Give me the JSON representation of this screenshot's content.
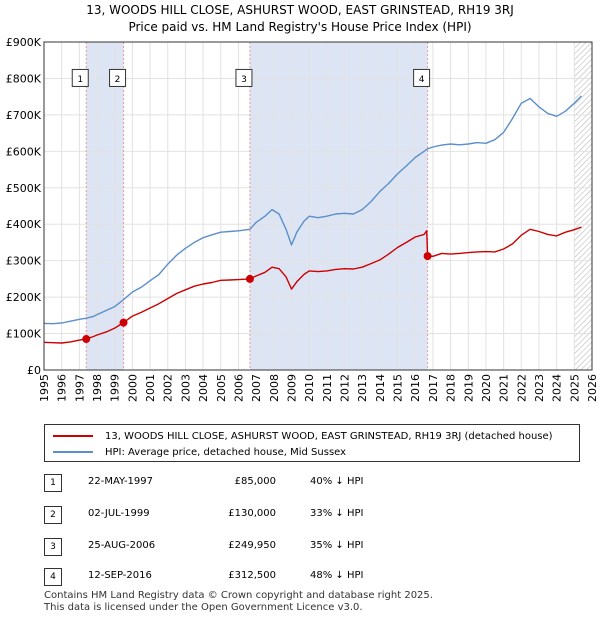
{
  "title_line1": "13, WOODS HILL CLOSE, ASHURST WOOD, EAST GRINSTEAD, RH19 3RJ",
  "title_line2": "Price paid vs. HM Land Registry's House Price Index (HPI)",
  "colors": {
    "property": "#cc0000",
    "hpi": "#5b8fc9",
    "shade": "#dde5f4",
    "marker_dash": "#e39a9a"
  },
  "chart_data": {
    "type": "line",
    "xlim": [
      1995,
      2026
    ],
    "ylim": [
      0,
      900000
    ],
    "x_ticks": [
      "1995",
      "1996",
      "1997",
      "1998",
      "1999",
      "2000",
      "2001",
      "2002",
      "2003",
      "2004",
      "2005",
      "2006",
      "2007",
      "2008",
      "2009",
      "2010",
      "2011",
      "2012",
      "2013",
      "2014",
      "2015",
      "2016",
      "2017",
      "2018",
      "2019",
      "2020",
      "2021",
      "2022",
      "2023",
      "2024",
      "2025",
      "2026"
    ],
    "y_ticks": [
      {
        "value": 0,
        "label": "£0"
      },
      {
        "value": 100000,
        "label": "£100K"
      },
      {
        "value": 200000,
        "label": "£200K"
      },
      {
        "value": 300000,
        "label": "£300K"
      },
      {
        "value": 400000,
        "label": "£400K"
      },
      {
        "value": 500000,
        "label": "£500K"
      },
      {
        "value": 600000,
        "label": "£600K"
      },
      {
        "value": 700000,
        "label": "£700K"
      },
      {
        "value": 800000,
        "label": "£800K"
      },
      {
        "value": 900000,
        "label": "£900K"
      }
    ],
    "shaded_periods": [
      [
        1997.39,
        1999.5
      ],
      [
        2006.65,
        2016.7
      ]
    ],
    "hatched_from": 2025.0,
    "series": [
      {
        "name": "13, WOODS HILL CLOSE, ASHURST WOOD, EAST GRINSTEAD, RH19 3RJ (detached house)",
        "x": [
          1995,
          1995.5,
          1996,
          1996.5,
          1997,
          1997.39,
          1997.8,
          1998,
          1998.5,
          1999,
          1999.5,
          2000,
          2000.5,
          2001,
          2001.5,
          2002,
          2002.5,
          2003,
          2003.5,
          2004,
          2004.5,
          2005,
          2005.5,
          2006,
          2006.65,
          2007,
          2007.5,
          2007.9,
          2008.3,
          2008.7,
          2009,
          2009.3,
          2009.7,
          2010,
          2010.5,
          2011,
          2011.5,
          2012,
          2012.5,
          2013,
          2013.5,
          2014,
          2014.5,
          2015,
          2015.5,
          2016,
          2016.5,
          2016.65,
          2016.7,
          2017,
          2017.5,
          2018,
          2018.5,
          2019,
          2019.5,
          2020,
          2020.5,
          2021,
          2021.5,
          2022,
          2022.5,
          2023,
          2023.5,
          2024,
          2024.5,
          2025,
          2025.4
        ],
        "y": [
          76000,
          75000,
          74000,
          77000,
          82000,
          85000,
          92000,
          96000,
          104000,
          115000,
          130000,
          148000,
          158000,
          170000,
          182000,
          196000,
          210000,
          220000,
          230000,
          236000,
          240000,
          246000,
          247000,
          248000,
          249950,
          258000,
          268000,
          282000,
          278000,
          255000,
          222000,
          242000,
          262000,
          272000,
          270000,
          272000,
          276000,
          278000,
          277000,
          282000,
          292000,
          302000,
          318000,
          336000,
          350000,
          365000,
          372000,
          382000,
          312500,
          312000,
          320000,
          318000,
          320000,
          322000,
          324000,
          325000,
          324000,
          332000,
          346000,
          370000,
          386000,
          380000,
          372000,
          368000,
          378000,
          385000,
          392000
        ]
      },
      {
        "name": "HPI: Average price, detached house, Mid Sussex",
        "x": [
          1995,
          1995.5,
          1996,
          1996.5,
          1997,
          1997.39,
          1997.8,
          1998,
          1998.5,
          1999,
          1999.5,
          2000,
          2000.5,
          2001,
          2001.5,
          2002,
          2002.5,
          2003,
          2003.5,
          2004,
          2004.5,
          2005,
          2005.5,
          2006,
          2006.65,
          2007,
          2007.5,
          2007.9,
          2008.3,
          2008.7,
          2009,
          2009.3,
          2009.7,
          2010,
          2010.5,
          2011,
          2011.5,
          2012,
          2012.5,
          2013,
          2013.5,
          2014,
          2014.5,
          2015,
          2015.5,
          2016,
          2016.5,
          2016.7,
          2017,
          2017.5,
          2018,
          2018.5,
          2019,
          2019.5,
          2020,
          2020.5,
          2021,
          2021.5,
          2022,
          2022.5,
          2023,
          2023.5,
          2024,
          2024.5,
          2025,
          2025.4
        ],
        "y": [
          128000,
          127000,
          129000,
          134000,
          139000,
          142000,
          147000,
          152000,
          163000,
          174000,
          193000,
          214000,
          227000,
          245000,
          262000,
          290000,
          315000,
          334000,
          350000,
          363000,
          371000,
          378000,
          380000,
          382000,
          386000,
          405000,
          422000,
          440000,
          428000,
          385000,
          343000,
          378000,
          408000,
          422000,
          418000,
          422000,
          428000,
          430000,
          428000,
          440000,
          462000,
          490000,
          512000,
          538000,
          560000,
          583000,
          600000,
          607000,
          612000,
          617000,
          620000,
          618000,
          620000,
          624000,
          622000,
          632000,
          652000,
          690000,
          732000,
          745000,
          722000,
          704000,
          696000,
          710000,
          732000,
          752000
        ]
      }
    ],
    "sales": [
      {
        "label": "1",
        "x": 1997.39,
        "y": 85000
      },
      {
        "label": "2",
        "x": 1999.5,
        "y": 130000
      },
      {
        "label": "3",
        "x": 2006.65,
        "y": 249950
      },
      {
        "label": "4",
        "x": 2016.7,
        "y": 312500
      }
    ]
  },
  "legend": {
    "property": "13, WOODS HILL CLOSE, ASHURST WOOD, EAST GRINSTEAD, RH19 3RJ (detached house)",
    "hpi": "HPI: Average price, detached house, Mid Sussex"
  },
  "transactions": [
    {
      "num": "1",
      "date": "22-MAY-1997",
      "price": "£85,000",
      "hpi": "40% ↓ HPI"
    },
    {
      "num": "2",
      "date": "02-JUL-1999",
      "price": "£130,000",
      "hpi": "33% ↓ HPI"
    },
    {
      "num": "3",
      "date": "25-AUG-2006",
      "price": "£249,950",
      "hpi": "35% ↓ HPI"
    },
    {
      "num": "4",
      "date": "12-SEP-2016",
      "price": "£312,500",
      "hpi": "48% ↓ HPI"
    }
  ],
  "footer": {
    "line1": "Contains HM Land Registry data © Crown copyright and database right 2025.",
    "line2": "This data is licensed under the Open Government Licence v3.0."
  }
}
